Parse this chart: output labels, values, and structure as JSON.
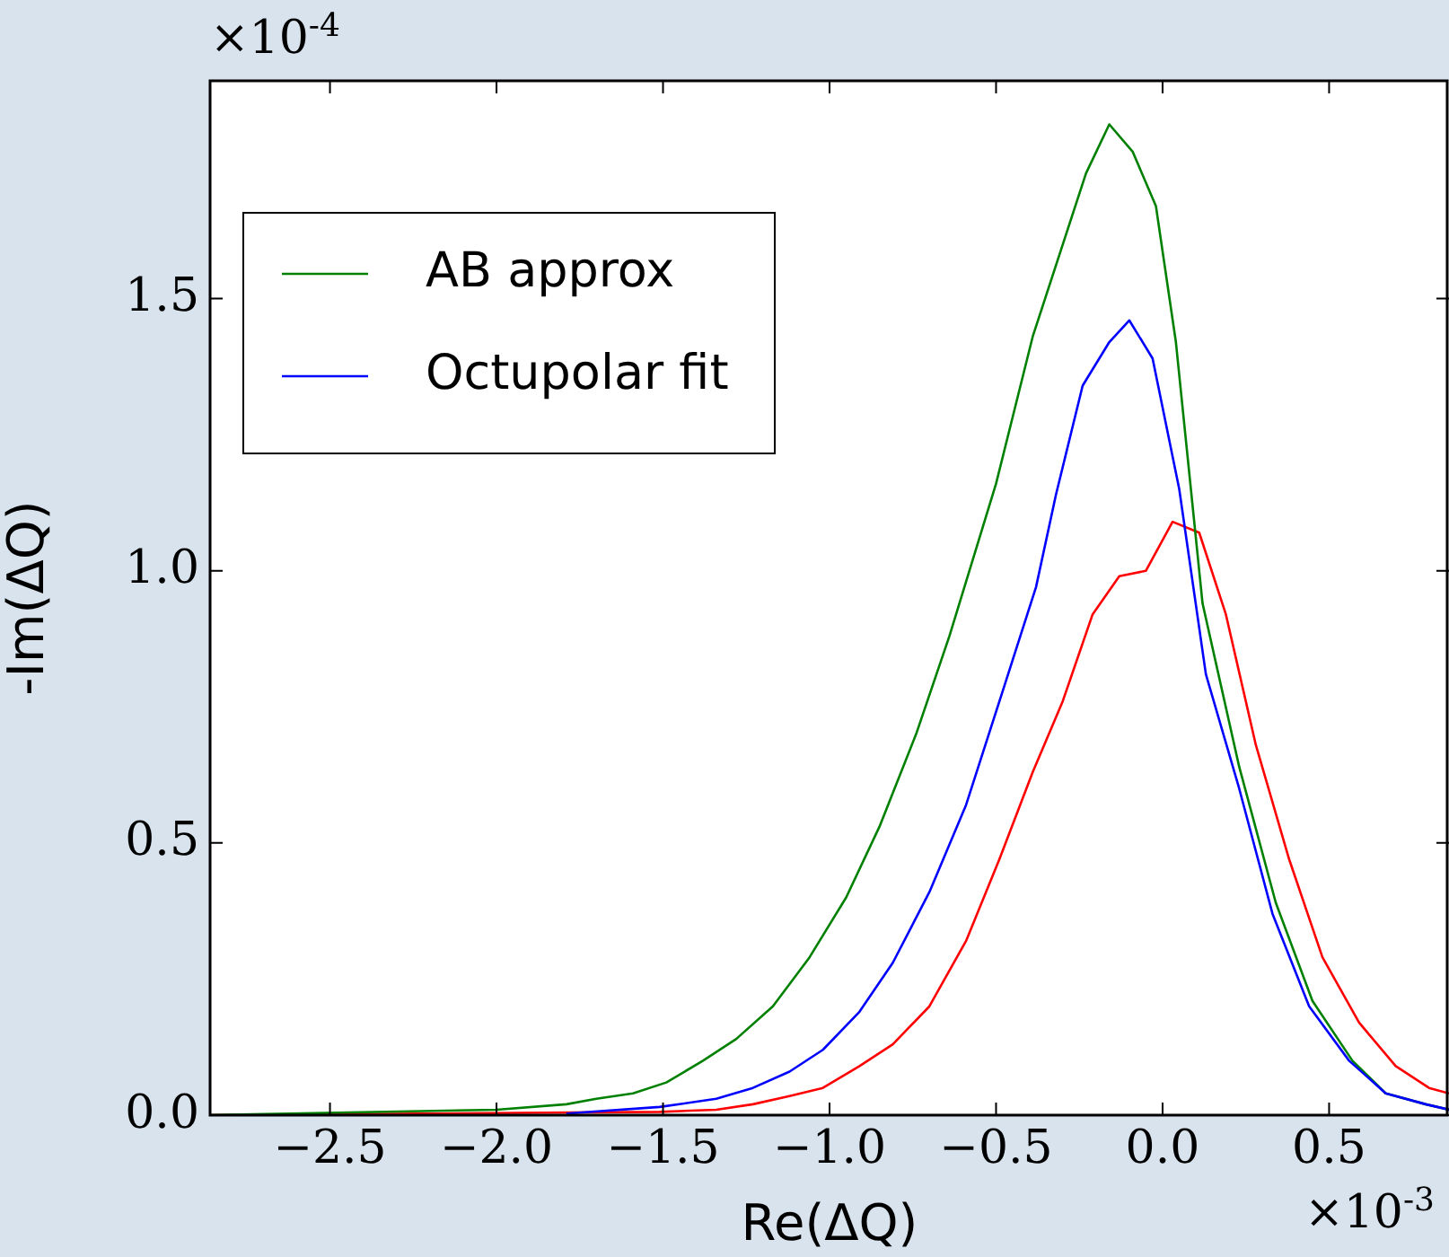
{
  "chart_data": {
    "type": "line",
    "xlabel": "Re(ΔQ)",
    "ylabel": "-Im(ΔQ)",
    "annotations": [
      "×10$^{-4}$",
      "×10$^{-3}$"
    ],
    "xlim": [
      -2.86,
      0.86
    ],
    "ylim": [
      0,
      1.9
    ],
    "xticks": [
      {
        "value": -2.5,
        "label": "−2.5"
      },
      {
        "value": -2,
        "label": "−2.0"
      },
      {
        "value": -1.5,
        "label": "−1.5"
      },
      {
        "value": -1,
        "label": "−1.0"
      },
      {
        "value": -0.5,
        "label": "−0.5"
      },
      {
        "value": 0,
        "label": "0.0"
      },
      {
        "value": 0.5,
        "label": "0.5"
      }
    ],
    "yticks": [
      {
        "value": 0,
        "label": "0.0"
      },
      {
        "value": 0.5,
        "label": "0.5"
      },
      {
        "value": 1,
        "label": "1.0"
      },
      1.5
    ],
    "legend": "top left",
    "marker": "none",
    "series": [
      {
        "color": "#ff0000",
        "x": [
          -2.86,
          -1.51,
          -1.34,
          -1.23,
          -1.12,
          -1.02,
          -0.91,
          -0.81,
          -0.7,
          -0.59,
          -0.49,
          -0.39,
          -0.3,
          -0.21,
          -0.13,
          -0.05,
          0.03,
          0.11,
          0.19,
          0.28,
          0.38,
          0.48,
          0.59,
          0.7,
          0.8,
          0.86
        ],
        "values": [
          0,
          0.006,
          0.01,
          0.02,
          0.035,
          0.05,
          0.09,
          0.13,
          0.2,
          0.32,
          0.47,
          0.63,
          0.76,
          0.92,
          0.99,
          1.0,
          1.09,
          1.07,
          0.92,
          0.68,
          0.47,
          0.29,
          0.17,
          0.09,
          0.05,
          0.04
        ]
      },
      {
        "name": "AB approx",
        "color": "#008000",
        "x": [
          -2.86,
          -2.0,
          -1.79,
          -1.7,
          -1.59,
          -1.49,
          -1.38,
          -1.28,
          -1.17,
          -1.06,
          -0.95,
          -0.85,
          -0.74,
          -0.64,
          -0.5,
          -0.39,
          -0.23,
          -0.16,
          -0.09,
          -0.02,
          0.04,
          0.12,
          0.23,
          0.34,
          0.45,
          0.57,
          0.67,
          0.79,
          0.86
        ],
        "values": [
          0,
          0.01,
          0.02,
          0.03,
          0.04,
          0.06,
          0.1,
          0.14,
          0.2,
          0.29,
          0.4,
          0.53,
          0.7,
          0.88,
          1.16,
          1.43,
          1.73,
          1.82,
          1.77,
          1.67,
          1.42,
          0.94,
          0.64,
          0.39,
          0.21,
          0.1,
          0.04,
          0.02,
          0.01
        ]
      },
      {
        "name": "Octupolar fit",
        "color": "#0000ff",
        "x": [
          -1.79,
          -1.51,
          -1.34,
          -1.23,
          -1.12,
          -1.02,
          -0.91,
          -0.81,
          -0.7,
          -0.59,
          -0.49,
          -0.38,
          -0.32,
          -0.24,
          -0.16,
          -0.1,
          -0.03,
          0.05,
          0.13,
          0.23,
          0.33,
          0.44,
          0.56,
          0.67,
          0.79,
          0.86
        ],
        "values": [
          0.003,
          0.015,
          0.03,
          0.05,
          0.08,
          0.12,
          0.19,
          0.28,
          0.41,
          0.57,
          0.76,
          0.97,
          1.14,
          1.34,
          1.42,
          1.46,
          1.39,
          1.15,
          0.81,
          0.6,
          0.37,
          0.2,
          0.1,
          0.04,
          0.02,
          0.01
        ]
      }
    ]
  }
}
